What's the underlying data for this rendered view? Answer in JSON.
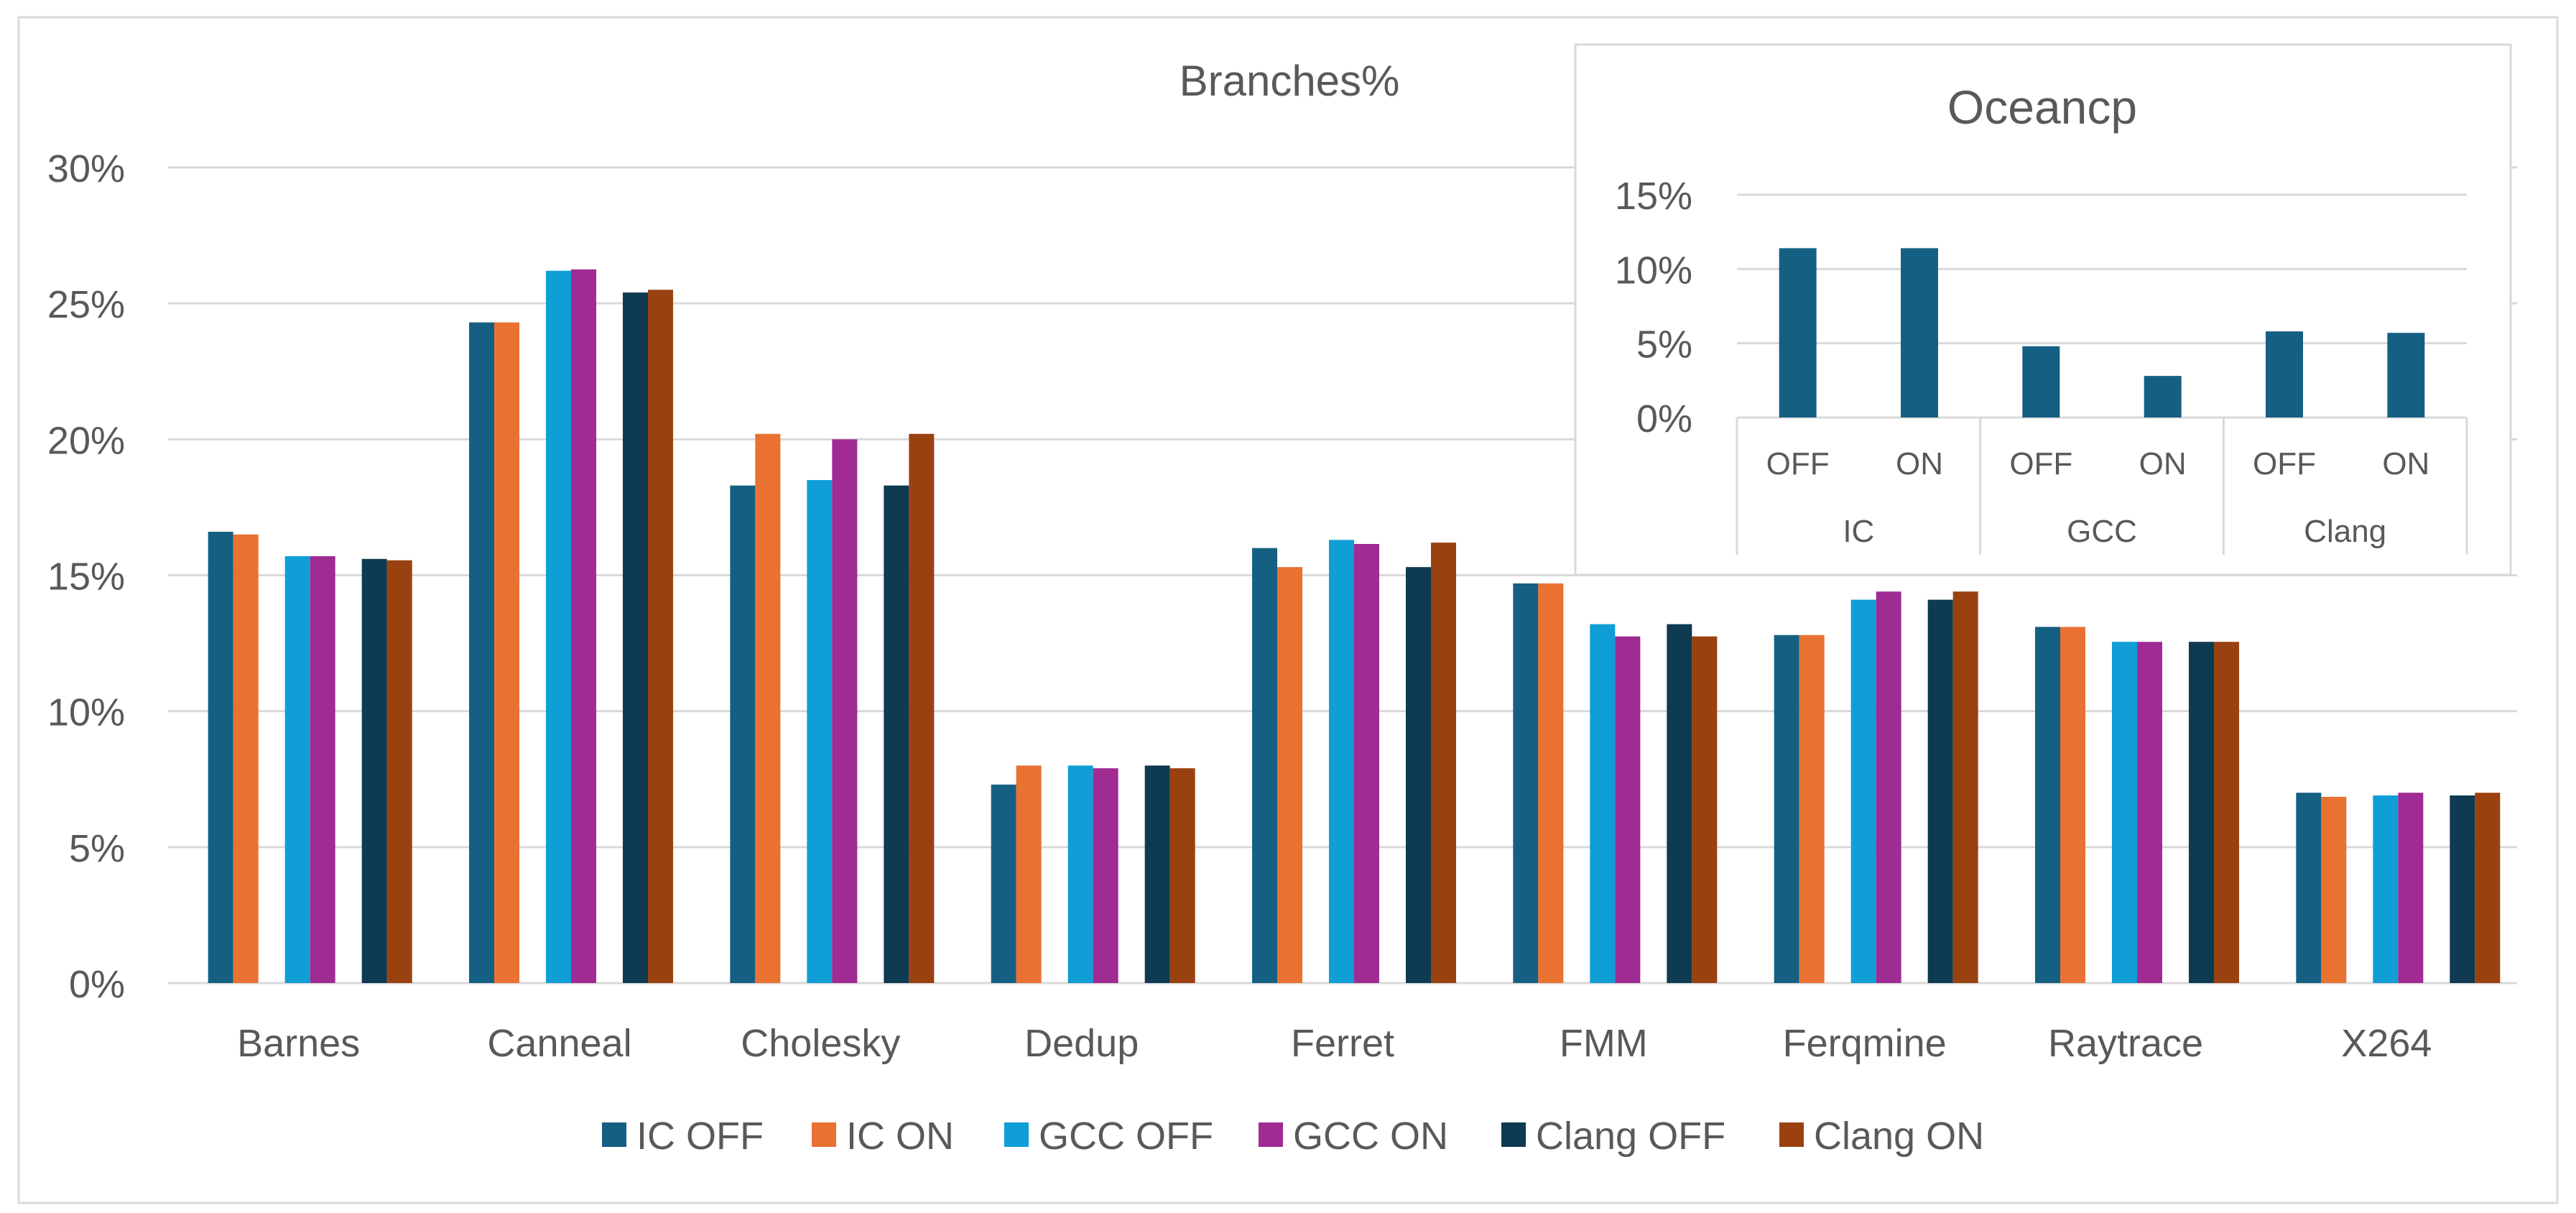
{
  "chart_data": [
    {
      "type": "bar",
      "title": "Branches%",
      "xlabel": "",
      "ylabel": "",
      "ylim": [
        0,
        30
      ],
      "yticks": [
        "0%",
        "5%",
        "10%",
        "15%",
        "20%",
        "25%",
        "30%"
      ],
      "yticks_values": [
        0,
        5,
        10,
        15,
        20,
        25,
        30
      ],
      "grid": true,
      "legend_position": "bottom",
      "categories": [
        "Barnes",
        "Canneal",
        "Cholesky",
        "Dedup",
        "Ferret",
        "FMM",
        "Ferqmine",
        "Raytrace",
        "X264"
      ],
      "series": [
        {
          "name": "IC OFF",
          "color": "#156082",
          "values": [
            16.6,
            24.3,
            18.3,
            7.3,
            16.0,
            14.7,
            12.8,
            13.1,
            7.0
          ]
        },
        {
          "name": "IC ON",
          "color": "#E97132",
          "values": [
            16.5,
            24.3,
            20.2,
            8.0,
            15.3,
            14.7,
            12.8,
            13.1,
            6.85
          ]
        },
        {
          "name": "GCC OFF",
          "color": "#0F9ED5",
          "values": [
            15.7,
            26.2,
            18.5,
            8.0,
            16.3,
            13.2,
            14.1,
            12.55,
            6.9
          ]
        },
        {
          "name": "GCC ON",
          "color": "#A02B93",
          "values": [
            15.7,
            26.25,
            20.0,
            7.9,
            16.15,
            12.75,
            14.4,
            12.55,
            7.0
          ]
        },
        {
          "name": "Clang OFF",
          "color": "#0E3A52",
          "values": [
            15.6,
            25.4,
            18.3,
            8.0,
            15.3,
            13.2,
            14.1,
            12.55,
            6.9
          ]
        },
        {
          "name": "Clang ON",
          "color": "#9A4110",
          "values": [
            15.55,
            25.5,
            20.2,
            7.9,
            16.2,
            12.75,
            14.4,
            12.55,
            7.0
          ]
        }
      ]
    },
    {
      "type": "bar",
      "title": "Oceancp",
      "xlabel": "",
      "ylabel": "",
      "ylim": [
        0,
        15
      ],
      "yticks": [
        "0%",
        "5%",
        "10%",
        "15%"
      ],
      "yticks_values": [
        0,
        5,
        10,
        15
      ],
      "grid": true,
      "groups": [
        "IC",
        "GCC",
        "Clang"
      ],
      "categories": [
        "OFF",
        "ON",
        "OFF",
        "ON",
        "OFF",
        "ON"
      ],
      "series": [
        {
          "name": "Oceancp",
          "color": "#156082",
          "values": [
            11.4,
            11.4,
            4.8,
            2.8,
            5.8,
            5.7
          ]
        }
      ]
    }
  ],
  "colors": {
    "grid": "#D9D9D9",
    "text": "#595959",
    "border": "#D9D9D9"
  }
}
